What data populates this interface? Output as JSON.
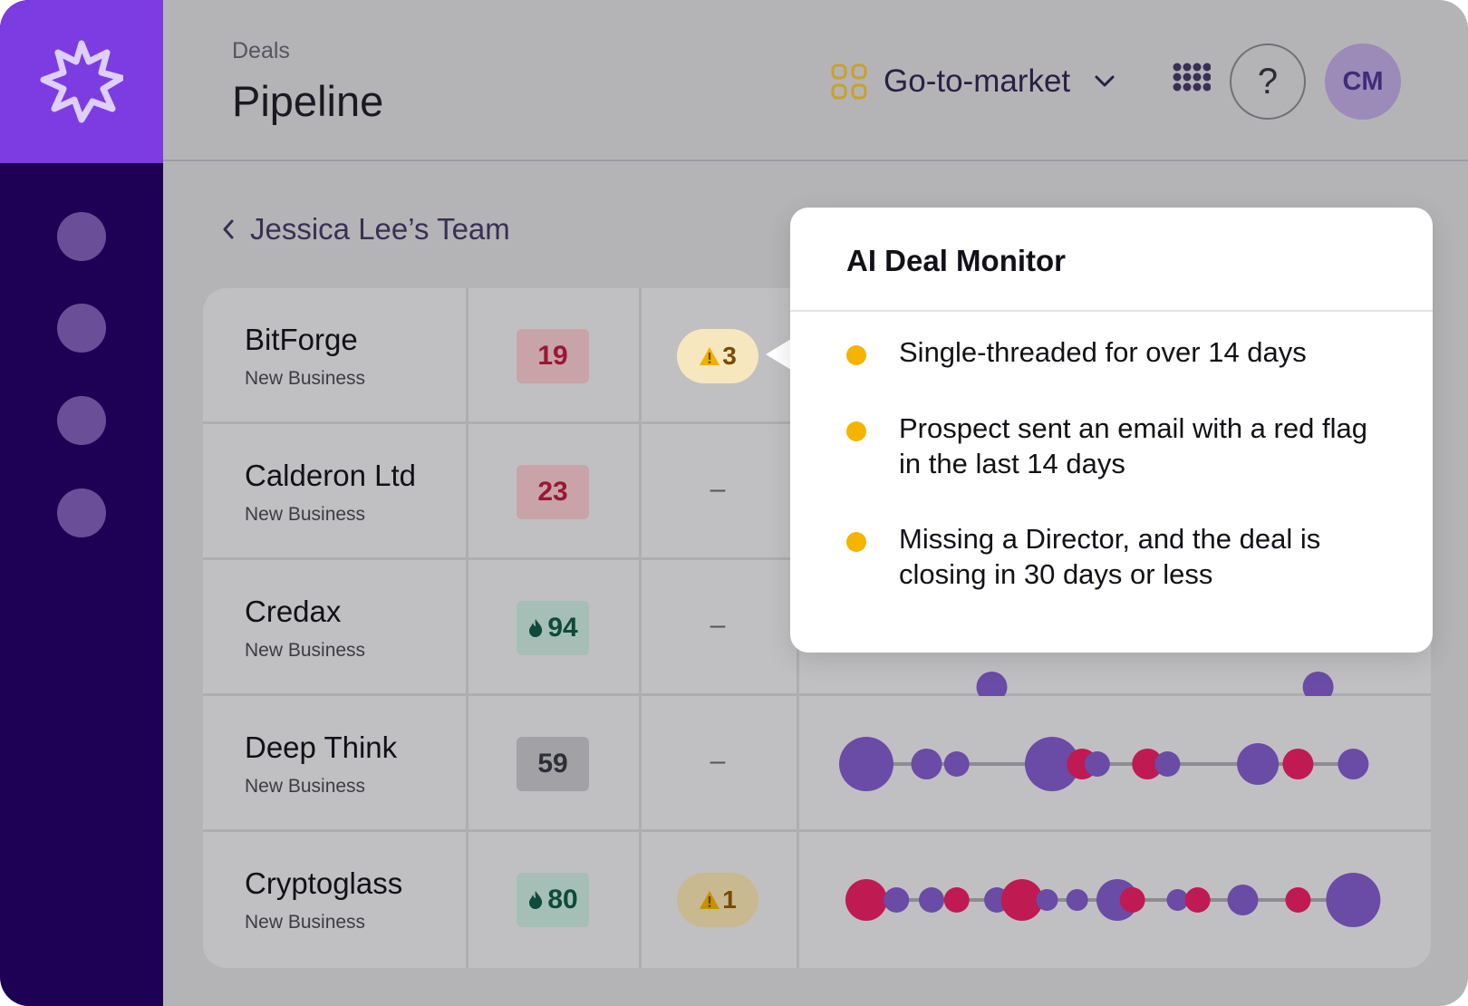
{
  "header": {
    "breadcrumb": "Deals",
    "title": "Pipeline",
    "workspace_label": "Go-to-market",
    "help_label": "?",
    "avatar_initials": "CM"
  },
  "sidebar": {
    "nav_items": [
      "nav-1",
      "nav-2",
      "nav-3",
      "nav-4"
    ]
  },
  "team": {
    "label": "Jessica Lee’s Team"
  },
  "rows": [
    {
      "name": "BitForge",
      "type": "New Business",
      "score": "19",
      "score_style": "red",
      "score_icon": "",
      "risks": "3",
      "risk_style": "active"
    },
    {
      "name": "Calderon Ltd",
      "type": "New Business",
      "score": "23",
      "score_style": "red",
      "score_icon": "",
      "risks": "–",
      "risk_style": "none"
    },
    {
      "name": "Credax",
      "type": "New Business",
      "score": "94",
      "score_style": "green",
      "score_icon": "flame-icon",
      "risks": "–",
      "risk_style": "none"
    },
    {
      "name": "Deep Think",
      "type": "New Business",
      "score": "59",
      "score_style": "gray",
      "score_icon": "",
      "risks": "–",
      "risk_style": "none"
    },
    {
      "name": "Cryptoglass",
      "type": "New Business",
      "score": "80",
      "score_style": "green",
      "score_icon": "flame-icon",
      "risks": "1",
      "risk_style": "muted"
    }
  ],
  "timelines": {
    "colors": {
      "purple": "#6a4ba6",
      "red": "#c01a52",
      "line": "#8c8c92"
    },
    "row_2": [
      {
        "pos": 0.25,
        "size": "md",
        "color": "purple"
      },
      {
        "pos": 0.9,
        "size": "md",
        "color": "purple"
      }
    ],
    "row_3": [
      {
        "pos": 0.0,
        "size": "xl",
        "color": "purple"
      },
      {
        "pos": 0.12,
        "size": "md",
        "color": "purple"
      },
      {
        "pos": 0.18,
        "size": "sm",
        "color": "purple"
      },
      {
        "pos": 0.37,
        "size": "xl",
        "color": "purple"
      },
      {
        "pos": 0.43,
        "size": "md",
        "color": "red"
      },
      {
        "pos": 0.46,
        "size": "sm",
        "color": "purple"
      },
      {
        "pos": 0.56,
        "size": "md",
        "color": "red"
      },
      {
        "pos": 0.6,
        "size": "sm",
        "color": "purple"
      },
      {
        "pos": 0.78,
        "size": "lg",
        "color": "purple"
      },
      {
        "pos": 0.86,
        "size": "md",
        "color": "red"
      },
      {
        "pos": 0.97,
        "size": "md",
        "color": "purple"
      }
    ],
    "row_4": [
      {
        "pos": 0.0,
        "size": "lg",
        "color": "red"
      },
      {
        "pos": 0.06,
        "size": "sm",
        "color": "purple"
      },
      {
        "pos": 0.13,
        "size": "sm",
        "color": "purple"
      },
      {
        "pos": 0.18,
        "size": "sm",
        "color": "red"
      },
      {
        "pos": 0.26,
        "size": "sm",
        "color": "purple"
      },
      {
        "pos": 0.31,
        "size": "lg",
        "color": "red"
      },
      {
        "pos": 0.36,
        "size": "xs",
        "color": "purple"
      },
      {
        "pos": 0.42,
        "size": "xs",
        "color": "purple"
      },
      {
        "pos": 0.5,
        "size": "lg",
        "color": "purple"
      },
      {
        "pos": 0.53,
        "size": "sm",
        "color": "red"
      },
      {
        "pos": 0.62,
        "size": "xs",
        "color": "purple"
      },
      {
        "pos": 0.66,
        "size": "sm",
        "color": "red"
      },
      {
        "pos": 0.75,
        "size": "md",
        "color": "purple"
      },
      {
        "pos": 0.86,
        "size": "sm",
        "color": "red"
      },
      {
        "pos": 0.97,
        "size": "xl",
        "color": "purple"
      }
    ]
  },
  "monitor": {
    "title": "AI Deal Monitor",
    "items": [
      "Single-threaded for over 14 days",
      "Prospect sent an email with a red flag in the last 14 days",
      "Missing a Director, and the deal is closing in 30 days or less"
    ],
    "bullet_color": "#f4b400"
  }
}
